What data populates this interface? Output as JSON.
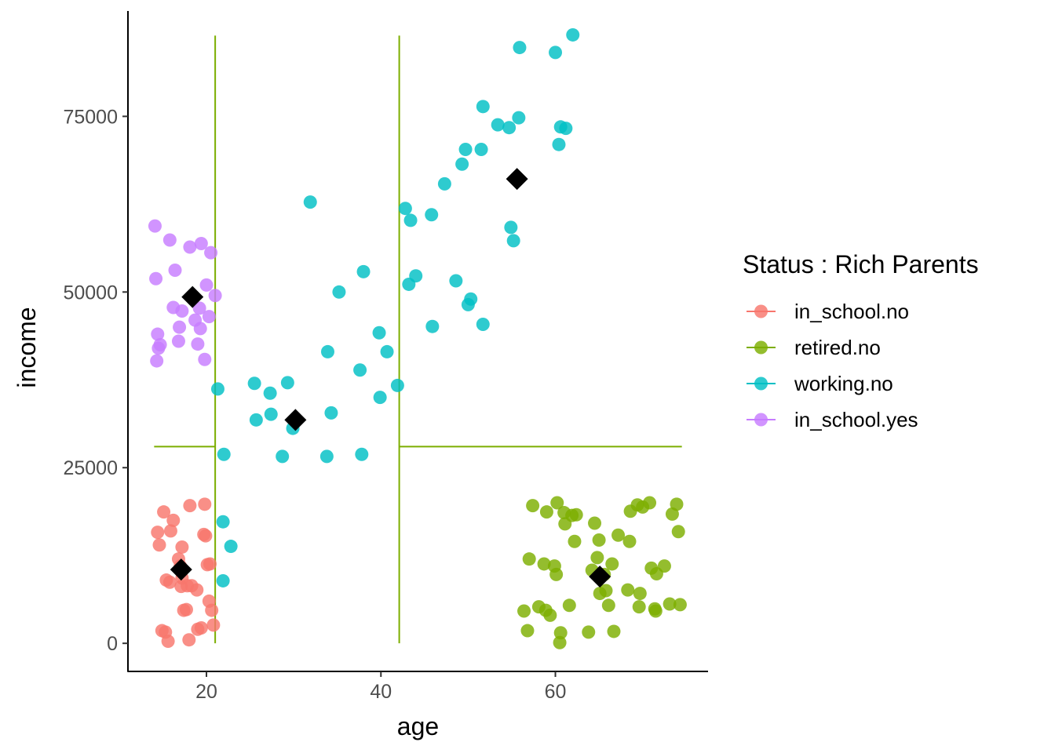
{
  "chart_data": {
    "type": "scatter",
    "title": "",
    "xlabel": "age",
    "ylabel": "income",
    "xlim": [
      11,
      77.5
    ],
    "ylim": [
      -4000,
      90000
    ],
    "x_ticks": [
      20,
      40,
      60
    ],
    "y_ticks": [
      0,
      25000,
      50000,
      75000
    ],
    "x_tick_labels": [
      "20",
      "40",
      "60"
    ],
    "y_tick_labels": [
      "0",
      "25000",
      "50000",
      "75000"
    ],
    "grid": false,
    "legend": {
      "title": "Status : Rich Parents",
      "position": "right",
      "entries": [
        "in_school.no",
        "retired.no",
        "working.no",
        "in_school.yes"
      ]
    },
    "series": [
      {
        "name": "in_school.no",
        "color": "#F8766D",
        "points": [
          [
            14.4,
            15800
          ],
          [
            14.6,
            14000
          ],
          [
            15.1,
            18700
          ],
          [
            15.9,
            16000
          ],
          [
            16.2,
            17500
          ],
          [
            14.9,
            1800
          ],
          [
            15.3,
            1600
          ],
          [
            15.6,
            300
          ],
          [
            15.4,
            9000
          ],
          [
            15.8,
            8700
          ],
          [
            16.8,
            12000
          ],
          [
            17.0,
            11000
          ],
          [
            17.2,
            13700
          ],
          [
            17.4,
            4700
          ],
          [
            17.7,
            4800
          ],
          [
            17.8,
            8200
          ],
          [
            17.1,
            8100
          ],
          [
            17.2,
            9300
          ],
          [
            18.1,
            19600
          ],
          [
            18.3,
            8200
          ],
          [
            18.0,
            500
          ],
          [
            18.9,
            7600
          ],
          [
            19.4,
            2200
          ],
          [
            19.0,
            2000
          ],
          [
            19.8,
            19800
          ],
          [
            19.9,
            15300
          ],
          [
            19.7,
            15500
          ],
          [
            20.1,
            11200
          ],
          [
            20.3,
            6000
          ],
          [
            20.4,
            11300
          ],
          [
            20.6,
            4700
          ],
          [
            20.8,
            2600
          ]
        ]
      },
      {
        "name": "retired.no",
        "color": "#7CAE00",
        "points": [
          [
            56.4,
            4600
          ],
          [
            56.8,
            1800
          ],
          [
            57.0,
            12000
          ],
          [
            57.4,
            19600
          ],
          [
            58.1,
            5200
          ],
          [
            58.7,
            11300
          ],
          [
            58.9,
            4700
          ],
          [
            59.0,
            18700
          ],
          [
            59.4,
            4000
          ],
          [
            59.9,
            11000
          ],
          [
            60.2,
            20000
          ],
          [
            60.1,
            9800
          ],
          [
            60.6,
            1500
          ],
          [
            60.5,
            100
          ],
          [
            61.1,
            17000
          ],
          [
            61.0,
            18600
          ],
          [
            61.6,
            5400
          ],
          [
            61.9,
            18200
          ],
          [
            62.2,
            14500
          ],
          [
            62.4,
            18300
          ],
          [
            63.8,
            1600
          ],
          [
            64.2,
            10400
          ],
          [
            64.5,
            17100
          ],
          [
            64.8,
            12200
          ],
          [
            65.0,
            14700
          ],
          [
            65.1,
            7100
          ],
          [
            65.6,
            9800
          ],
          [
            65.8,
            7500
          ],
          [
            66.1,
            5400
          ],
          [
            66.5,
            11300
          ],
          [
            66.7,
            1700
          ],
          [
            67.2,
            15400
          ],
          [
            68.3,
            7600
          ],
          [
            68.5,
            14500
          ],
          [
            68.6,
            18800
          ],
          [
            69.4,
            19700
          ],
          [
            69.6,
            5200
          ],
          [
            69.7,
            7100
          ],
          [
            70.0,
            19400
          ],
          [
            70.8,
            20000
          ],
          [
            71.0,
            10700
          ],
          [
            71.4,
            4900
          ],
          [
            71.5,
            4600
          ],
          [
            71.6,
            9900
          ],
          [
            72.5,
            11000
          ],
          [
            73.1,
            5600
          ],
          [
            73.4,
            18400
          ],
          [
            73.9,
            19800
          ],
          [
            74.1,
            15900
          ],
          [
            74.3,
            5500
          ]
        ]
      },
      {
        "name": "working.no",
        "color": "#00BFC4",
        "points": [
          [
            21.3,
            36200
          ],
          [
            21.9,
            17300
          ],
          [
            21.9,
            8900
          ],
          [
            22.0,
            26900
          ],
          [
            22.8,
            13800
          ],
          [
            25.5,
            37000
          ],
          [
            25.7,
            31800
          ],
          [
            27.3,
            35600
          ],
          [
            27.4,
            32600
          ],
          [
            28.7,
            26600
          ],
          [
            29.3,
            37100
          ],
          [
            29.9,
            30600
          ],
          [
            31.9,
            62800
          ],
          [
            33.8,
            26600
          ],
          [
            33.9,
            41500
          ],
          [
            34.3,
            32800
          ],
          [
            35.2,
            50000
          ],
          [
            37.6,
            38900
          ],
          [
            37.8,
            26900
          ],
          [
            38.0,
            52900
          ],
          [
            39.8,
            44200
          ],
          [
            39.9,
            35000
          ],
          [
            40.7,
            41500
          ],
          [
            41.9,
            36700
          ],
          [
            42.8,
            61900
          ],
          [
            43.2,
            51100
          ],
          [
            43.4,
            60200
          ],
          [
            44.0,
            52300
          ],
          [
            45.8,
            61000
          ],
          [
            45.9,
            45100
          ],
          [
            47.3,
            65400
          ],
          [
            48.6,
            51600
          ],
          [
            49.3,
            68200
          ],
          [
            49.7,
            70300
          ],
          [
            50.0,
            48200
          ],
          [
            50.3,
            49000
          ],
          [
            51.5,
            70300
          ],
          [
            51.7,
            76400
          ],
          [
            51.7,
            45400
          ],
          [
            53.4,
            73800
          ],
          [
            54.7,
            73400
          ],
          [
            54.9,
            59200
          ],
          [
            55.2,
            57300
          ],
          [
            55.8,
            74800
          ],
          [
            55.9,
            84800
          ],
          [
            60.0,
            84100
          ],
          [
            60.4,
            71000
          ],
          [
            60.6,
            73500
          ],
          [
            61.2,
            73300
          ],
          [
            62.0,
            86600
          ]
        ]
      },
      {
        "name": "in_school.yes",
        "color": "#C77CFF",
        "points": [
          [
            14.1,
            59400
          ],
          [
            14.2,
            51900
          ],
          [
            14.3,
            40200
          ],
          [
            14.4,
            44000
          ],
          [
            14.5,
            42000
          ],
          [
            14.7,
            42500
          ],
          [
            15.8,
            57400
          ],
          [
            16.2,
            47800
          ],
          [
            16.4,
            53100
          ],
          [
            16.8,
            43000
          ],
          [
            16.9,
            45000
          ],
          [
            17.2,
            47300
          ],
          [
            18.1,
            56400
          ],
          [
            18.7,
            46000
          ],
          [
            19.0,
            42600
          ],
          [
            19.2,
            47700
          ],
          [
            19.3,
            44800
          ],
          [
            19.4,
            56900
          ],
          [
            19.8,
            40400
          ],
          [
            20.0,
            51000
          ],
          [
            20.3,
            46500
          ],
          [
            20.5,
            55600
          ],
          [
            21.0,
            49500
          ]
        ]
      }
    ],
    "centroids": {
      "color": "#000000",
      "points": [
        [
          17.1,
          10500
        ],
        [
          65.1,
          9500
        ],
        [
          30.2,
          31800
        ],
        [
          55.6,
          66100
        ],
        [
          18.4,
          49300
        ]
      ]
    },
    "cut_lines": {
      "color": "#7CAE00",
      "vertical": [
        {
          "x": 21.0,
          "y_from": 0,
          "y_to": 86500
        },
        {
          "x": 42.1,
          "y_from": 0,
          "y_to": 86500
        }
      ],
      "horizontal": [
        {
          "y": 28000,
          "x_from": 14.0,
          "x_to": 21.0
        },
        {
          "y": 28000,
          "x_from": 42.1,
          "x_to": 74.5
        }
      ]
    }
  }
}
